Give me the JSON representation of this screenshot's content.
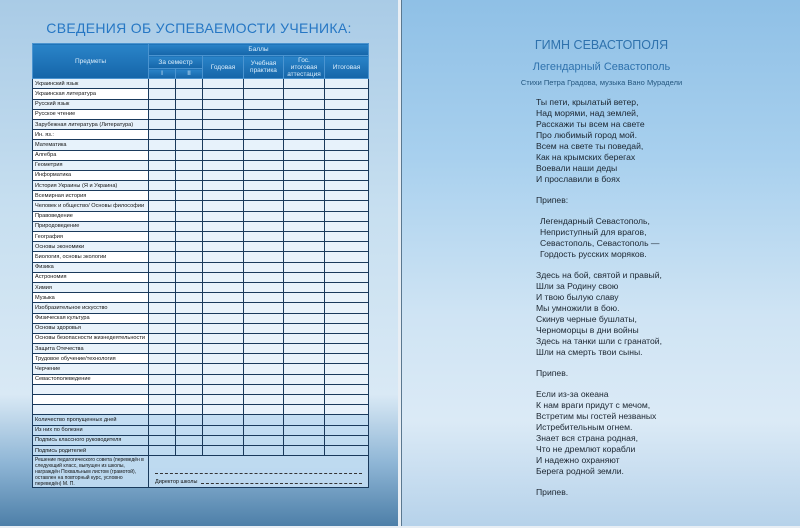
{
  "left": {
    "title": "СВЕДЕНИЯ ОБ УСПЕВАЕМОСТИ УЧЕНИКА:",
    "headers": {
      "subjects": "Предметы",
      "scores": "Баллы",
      "semester": "За семестр",
      "sem1": "I",
      "sem2": "II",
      "annual": "Годовая",
      "practice": "Учебная практика",
      "state": "Гос. итоговая аттестация",
      "final": "Итоговая"
    },
    "subjects": [
      "Украинский язык",
      "Украинская литература",
      "Русский язык",
      "Русское чтение",
      "Зарубежная литература (Литература)",
      "Ин. яз.:",
      "Математика",
      "Алгебра",
      "Геометрия",
      "Информатика",
      "История Украины (Я и Украина)",
      "Всемирная история",
      "Человек и общество/ Основы философии",
      "Правоведение",
      "Природоведение",
      "География",
      "Основы экономики",
      "Биология, основы экологии",
      "Физика",
      "Астрономия",
      "Химия",
      "Музыка",
      "Изобразительное искусство",
      "Физическая культура",
      "Основы здоровья",
      "Основы безопасности жизнедеятельности",
      "Защита Отечества",
      "Трудовое обучение/технология",
      "Черчение",
      "Севастополеведение",
      "",
      "",
      ""
    ],
    "summary": [
      "Количество пропущенных дней",
      "Из них по болезни",
      "Подпись классного руководителя",
      "Подпись родителей"
    ],
    "decision": "Решение педагогического совета (переведён в следующий класс, выпущен из школы, награждён Похвальным листом (грамотой), оставлен на повторный курс, условно переведён)",
    "stamp": "М. П.",
    "director": "Директор школы"
  },
  "right": {
    "title": "ГИМН СЕВАСТОПОЛЯ",
    "subtitle": "Легендарный Севастополь",
    "credits": "Стихи Петра Градова, музыка Вано Мурадели",
    "stanzas": [
      [
        "Ты пети, крылатый ветер,",
        "Над морями, над землей,",
        "Расскажи ты всем на свете",
        "Про любимый город мой.",
        "Всем на свете ты поведай,",
        "Как на крымских берегах",
        "Воевали наши деды",
        "И прославили в боях"
      ],
      [
        "Припев:"
      ],
      [
        "Легендарный Севастополь,",
        "Неприступный для врагов,",
        "Севастополь, Севастополь —",
        "Гордость русских моряков."
      ],
      [
        "Здесь на бой, святой и правый,",
        "Шли за Родину свою",
        "И твою былую славу",
        "Мы умножили в бою.",
        "Скинув черные бушлаты,",
        "Черноморцы в дни войны",
        "Здесь на танки шли с гранатой,",
        "Шли на смерть твои сыны."
      ],
      [
        "Припев."
      ],
      [
        "Если из-за океана",
        "К нам враги придут с мечом,",
        "Встретим мы гостей незваных",
        "Истребительным огнем.",
        "Знает вся страна родная,",
        "Что не дремлют корабли",
        "И надежно охраняют",
        "Берега родной земли."
      ],
      [
        "Припев."
      ]
    ]
  }
}
